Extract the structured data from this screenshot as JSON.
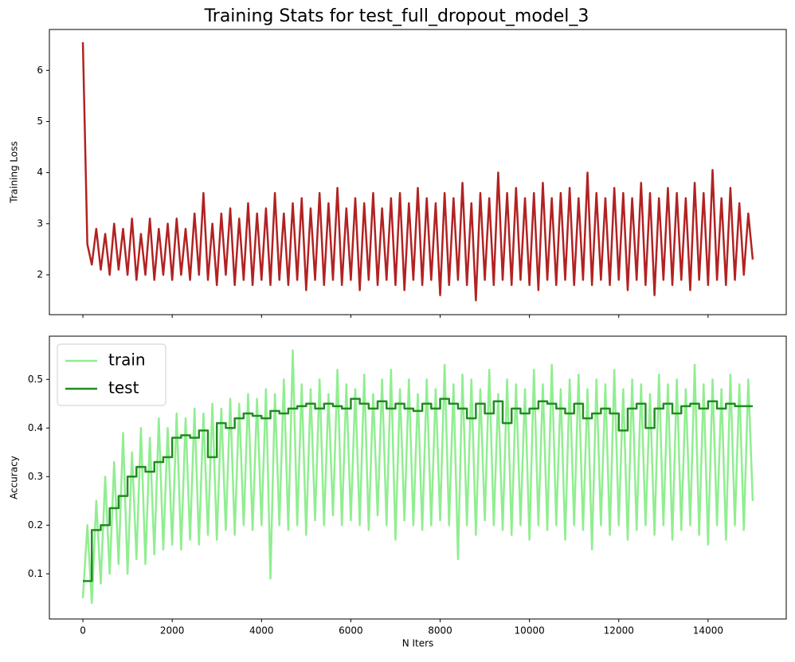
{
  "chart_data": [
    {
      "type": "line",
      "title": "Training Stats for test_full_dropout_model_3",
      "ylabel": "Training Loss",
      "xlim": [
        -750,
        15750
      ],
      "ylim": [
        1.22,
        6.8
      ],
      "xticks": [
        0,
        2000,
        4000,
        6000,
        8000,
        10000,
        12000,
        14000
      ],
      "yticks": [
        2,
        3,
        4,
        5,
        6
      ],
      "show_xtick_labels": false,
      "x": [
        0,
        100,
        200,
        300,
        400,
        500,
        600,
        700,
        800,
        900,
        1000,
        1100,
        1200,
        1300,
        1400,
        1500,
        1600,
        1700,
        1800,
        1900,
        2000,
        2100,
        2200,
        2300,
        2400,
        2500,
        2600,
        2700,
        2800,
        2900,
        3000,
        3100,
        3200,
        3300,
        3400,
        3500,
        3600,
        3700,
        3800,
        3900,
        4000,
        4100,
        4200,
        4300,
        4400,
        4500,
        4600,
        4700,
        4800,
        4900,
        5000,
        5100,
        5200,
        5300,
        5400,
        5500,
        5600,
        5700,
        5800,
        5900,
        6000,
        6100,
        6200,
        6300,
        6400,
        6500,
        6600,
        6700,
        6800,
        6900,
        7000,
        7100,
        7200,
        7300,
        7400,
        7500,
        7600,
        7700,
        7800,
        7900,
        8000,
        8100,
        8200,
        8300,
        8400,
        8500,
        8600,
        8700,
        8800,
        8900,
        9000,
        9100,
        9200,
        9300,
        9400,
        9500,
        9600,
        9700,
        9800,
        9900,
        10000,
        10100,
        10200,
        10300,
        10400,
        10500,
        10600,
        10700,
        10800,
        10900,
        11000,
        11100,
        11200,
        11300,
        11400,
        11500,
        11600,
        11700,
        11800,
        11900,
        12000,
        12100,
        12200,
        12300,
        12400,
        12500,
        12600,
        12700,
        12800,
        12900,
        13000,
        13100,
        13200,
        13300,
        13400,
        13500,
        13600,
        13700,
        13800,
        13900,
        14000,
        14100,
        14200,
        14300,
        14400,
        14500,
        14600,
        14700,
        14800,
        14900,
        15000
      ],
      "color": "#b22222",
      "values": [
        6.55,
        2.6,
        2.2,
        2.9,
        2.1,
        2.8,
        2.0,
        3.0,
        2.1,
        2.9,
        2.0,
        3.1,
        1.9,
        2.8,
        2.0,
        3.1,
        1.9,
        2.9,
        2.0,
        3.0,
        1.9,
        3.1,
        2.0,
        2.9,
        1.9,
        3.2,
        2.0,
        3.6,
        1.9,
        3.0,
        1.8,
        3.2,
        2.0,
        3.3,
        1.8,
        3.1,
        1.9,
        3.4,
        1.8,
        3.2,
        1.9,
        3.3,
        1.8,
        3.6,
        1.9,
        3.2,
        1.8,
        3.4,
        1.9,
        3.5,
        1.7,
        3.3,
        1.9,
        3.6,
        1.8,
        3.4,
        1.9,
        3.7,
        1.8,
        3.3,
        1.9,
        3.5,
        1.7,
        3.4,
        1.9,
        3.6,
        1.8,
        3.3,
        1.9,
        3.5,
        1.8,
        3.6,
        1.7,
        3.4,
        1.9,
        3.7,
        1.8,
        3.5,
        1.9,
        3.4,
        1.6,
        3.6,
        1.8,
        3.5,
        1.9,
        3.8,
        1.8,
        3.4,
        1.5,
        3.6,
        1.9,
        3.5,
        1.8,
        4.0,
        1.9,
        3.6,
        1.8,
        3.7,
        1.9,
        3.5,
        1.8,
        3.6,
        1.7,
        3.8,
        1.9,
        3.5,
        1.8,
        3.6,
        1.9,
        3.7,
        1.8,
        3.5,
        1.9,
        4.0,
        1.8,
        3.6,
        1.9,
        3.5,
        1.8,
        3.7,
        1.9,
        3.6,
        1.7,
        3.5,
        1.9,
        3.8,
        1.8,
        3.6,
        1.6,
        3.5,
        1.9,
        3.7,
        1.8,
        3.6,
        1.9,
        3.5,
        1.7,
        3.8,
        1.9,
        3.6,
        1.8,
        4.05,
        1.9,
        3.5,
        1.8,
        3.7,
        1.9,
        3.4,
        2.0,
        3.2,
        2.3
      ]
    },
    {
      "type": "line",
      "xlabel": "N Iters",
      "ylabel": "Accuracy",
      "legend": "upper left",
      "xlim": [
        -750,
        15750
      ],
      "ylim": [
        0.007,
        0.589
      ],
      "xticks": [
        0,
        2000,
        4000,
        6000,
        8000,
        10000,
        12000,
        14000
      ],
      "yticks": [
        0.1,
        0.2,
        0.3,
        0.4,
        0.5
      ],
      "show_xtick_labels": true,
      "series": [
        {
          "name": "train",
          "color": "#90ee90",
          "step": false,
          "x": [
            0,
            100,
            200,
            300,
            400,
            500,
            600,
            700,
            800,
            900,
            1000,
            1100,
            1200,
            1300,
            1400,
            1500,
            1600,
            1700,
            1800,
            1900,
            2000,
            2100,
            2200,
            2300,
            2400,
            2500,
            2600,
            2700,
            2800,
            2900,
            3000,
            3100,
            3200,
            3300,
            3400,
            3500,
            3600,
            3700,
            3800,
            3900,
            4000,
            4100,
            4200,
            4300,
            4400,
            4500,
            4600,
            4700,
            4800,
            4900,
            5000,
            5100,
            5200,
            5300,
            5400,
            5500,
            5600,
            5700,
            5800,
            5900,
            6000,
            6100,
            6200,
            6300,
            6400,
            6500,
            6600,
            6700,
            6800,
            6900,
            7000,
            7100,
            7200,
            7300,
            7400,
            7500,
            7600,
            7700,
            7800,
            7900,
            8000,
            8100,
            8200,
            8300,
            8400,
            8500,
            8600,
            8700,
            8800,
            8900,
            9000,
            9100,
            9200,
            9300,
            9400,
            9500,
            9600,
            9700,
            9800,
            9900,
            10000,
            10100,
            10200,
            10300,
            10400,
            10500,
            10600,
            10700,
            10800,
            10900,
            11000,
            11100,
            11200,
            11300,
            11400,
            11500,
            11600,
            11700,
            11800,
            11900,
            12000,
            12100,
            12200,
            12300,
            12400,
            12500,
            12600,
            12700,
            12800,
            12900,
            13000,
            13100,
            13200,
            13300,
            13400,
            13500,
            13600,
            13700,
            13800,
            13900,
            14000,
            14100,
            14200,
            14300,
            14400,
            14500,
            14600,
            14700,
            14800,
            14900,
            15000
          ],
          "values": [
            0.05,
            0.2,
            0.04,
            0.25,
            0.08,
            0.3,
            0.1,
            0.33,
            0.12,
            0.39,
            0.1,
            0.35,
            0.13,
            0.4,
            0.12,
            0.38,
            0.14,
            0.42,
            0.15,
            0.4,
            0.16,
            0.43,
            0.15,
            0.42,
            0.17,
            0.44,
            0.16,
            0.43,
            0.18,
            0.45,
            0.17,
            0.44,
            0.19,
            0.46,
            0.18,
            0.45,
            0.2,
            0.47,
            0.19,
            0.46,
            0.2,
            0.48,
            0.09,
            0.47,
            0.2,
            0.5,
            0.19,
            0.56,
            0.2,
            0.49,
            0.18,
            0.48,
            0.21,
            0.5,
            0.2,
            0.47,
            0.22,
            0.52,
            0.2,
            0.49,
            0.21,
            0.48,
            0.2,
            0.51,
            0.19,
            0.47,
            0.22,
            0.5,
            0.2,
            0.52,
            0.17,
            0.48,
            0.21,
            0.5,
            0.2,
            0.47,
            0.19,
            0.5,
            0.2,
            0.48,
            0.21,
            0.53,
            0.2,
            0.49,
            0.13,
            0.51,
            0.2,
            0.5,
            0.18,
            0.48,
            0.21,
            0.52,
            0.2,
            0.47,
            0.19,
            0.5,
            0.18,
            0.49,
            0.2,
            0.48,
            0.17,
            0.52,
            0.2,
            0.49,
            0.19,
            0.53,
            0.2,
            0.48,
            0.17,
            0.5,
            0.2,
            0.51,
            0.19,
            0.48,
            0.15,
            0.5,
            0.2,
            0.49,
            0.18,
            0.52,
            0.2,
            0.48,
            0.17,
            0.5,
            0.19,
            0.49,
            0.2,
            0.47,
            0.18,
            0.51,
            0.2,
            0.49,
            0.17,
            0.5,
            0.19,
            0.48,
            0.2,
            0.53,
            0.18,
            0.49,
            0.16,
            0.5,
            0.2,
            0.48,
            0.17,
            0.51,
            0.2,
            0.49,
            0.19,
            0.5,
            0.25
          ]
        },
        {
          "name": "test",
          "color": "#228b22",
          "step": true,
          "x": [
            0,
            200,
            400,
            600,
            800,
            1000,
            1200,
            1400,
            1600,
            1800,
            2000,
            2200,
            2400,
            2600,
            2800,
            3000,
            3200,
            3400,
            3600,
            3800,
            4000,
            4200,
            4400,
            4600,
            4800,
            5000,
            5200,
            5400,
            5600,
            5800,
            6000,
            6200,
            6400,
            6600,
            6800,
            7000,
            7200,
            7400,
            7600,
            7800,
            8000,
            8200,
            8400,
            8600,
            8800,
            9000,
            9200,
            9400,
            9600,
            9800,
            10000,
            10200,
            10400,
            10600,
            10800,
            11000,
            11200,
            11400,
            11600,
            11800,
            12000,
            12200,
            12400,
            12600,
            12800,
            13000,
            13200,
            13400,
            13600,
            13800,
            14000,
            14200,
            14400,
            14600,
            14800,
            15000
          ],
          "values": [
            0.085,
            0.19,
            0.2,
            0.235,
            0.26,
            0.3,
            0.32,
            0.31,
            0.33,
            0.34,
            0.38,
            0.385,
            0.38,
            0.395,
            0.34,
            0.41,
            0.4,
            0.42,
            0.43,
            0.425,
            0.42,
            0.435,
            0.43,
            0.44,
            0.445,
            0.45,
            0.44,
            0.45,
            0.445,
            0.44,
            0.46,
            0.45,
            0.44,
            0.455,
            0.44,
            0.45,
            0.44,
            0.435,
            0.45,
            0.44,
            0.46,
            0.45,
            0.44,
            0.42,
            0.45,
            0.43,
            0.455,
            0.41,
            0.44,
            0.43,
            0.44,
            0.455,
            0.45,
            0.44,
            0.43,
            0.45,
            0.42,
            0.43,
            0.44,
            0.43,
            0.395,
            0.44,
            0.45,
            0.4,
            0.44,
            0.45,
            0.43,
            0.445,
            0.45,
            0.44,
            0.455,
            0.44,
            0.45,
            0.445,
            0.445,
            0.445
          ]
        }
      ]
    }
  ]
}
